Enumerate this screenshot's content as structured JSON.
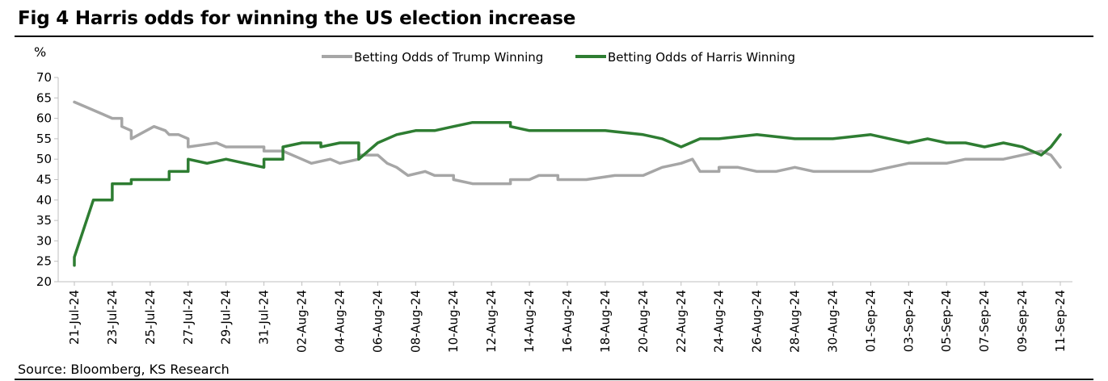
{
  "figure": {
    "title": "Fig 4 Harris odds for winning the US election increase",
    "source": "Source: Bloomberg, KS Research"
  },
  "chart_data": {
    "type": "line",
    "title": "Fig 4 Harris odds for winning the US election increase",
    "xlabel": "",
    "ylabel": "%",
    "ylim": [
      20,
      70
    ],
    "yticks": [
      20,
      25,
      30,
      35,
      40,
      45,
      50,
      55,
      60,
      65,
      70
    ],
    "grid": false,
    "legend_position": "top",
    "x_tick_labels": [
      "21-Jul-24",
      "23-Jul-24",
      "25-Jul-24",
      "27-Jul-24",
      "29-Jul-24",
      "31-Jul-24",
      "02-Aug-24",
      "04-Aug-24",
      "06-Aug-24",
      "08-Aug-24",
      "10-Aug-24",
      "12-Aug-24",
      "14-Aug-24",
      "16-Aug-24",
      "18-Aug-24",
      "20-Aug-24",
      "22-Aug-24",
      "24-Aug-24",
      "26-Aug-24",
      "28-Aug-24",
      "30-Aug-24",
      "01-Sep-24",
      "03-Sep-24",
      "05-Sep-24",
      "07-Sep-24",
      "09-Sep-24",
      "11-Sep-24"
    ],
    "series": [
      {
        "name": "Betting Odds of Trump Winning",
        "color": "#a6a6a6",
        "points": [
          {
            "x": "2024-07-21",
            "y": 64
          },
          {
            "x": "2024-07-21.5",
            "y": 63
          },
          {
            "x": "2024-07-22.5",
            "y": 61
          },
          {
            "x": "2024-07-23",
            "y": 60
          },
          {
            "x": "2024-07-23.5",
            "y": 60
          },
          {
            "x": "2024-07-23.5",
            "y": 58
          },
          {
            "x": "2024-07-24",
            "y": 57
          },
          {
            "x": "2024-07-24",
            "y": 55
          },
          {
            "x": "2024-07-25.2",
            "y": 58
          },
          {
            "x": "2024-07-25.8",
            "y": 57
          },
          {
            "x": "2024-07-26",
            "y": 56
          },
          {
            "x": "2024-07-26.5",
            "y": 56
          },
          {
            "x": "2024-07-27",
            "y": 55
          },
          {
            "x": "2024-07-27",
            "y": 53
          },
          {
            "x": "2024-07-28.5",
            "y": 54
          },
          {
            "x": "2024-07-29",
            "y": 53
          },
          {
            "x": "2024-07-30",
            "y": 53
          },
          {
            "x": "2024-07-31",
            "y": 53
          },
          {
            "x": "2024-07-31",
            "y": 52
          },
          {
            "x": "2024-08-01",
            "y": 52
          },
          {
            "x": "2024-08-02",
            "y": 50
          },
          {
            "x": "2024-08-02.5",
            "y": 49
          },
          {
            "x": "2024-08-03.5",
            "y": 50
          },
          {
            "x": "2024-08-04",
            "y": 49
          },
          {
            "x": "2024-08-05",
            "y": 50
          },
          {
            "x": "2024-08-05",
            "y": 51
          },
          {
            "x": "2024-08-06",
            "y": 51
          },
          {
            "x": "2024-08-06.5",
            "y": 49
          },
          {
            "x": "2024-08-07",
            "y": 48
          },
          {
            "x": "2024-08-07.6",
            "y": 46
          },
          {
            "x": "2024-08-08.5",
            "y": 47
          },
          {
            "x": "2024-08-09",
            "y": 46
          },
          {
            "x": "2024-08-10",
            "y": 46
          },
          {
            "x": "2024-08-10",
            "y": 45
          },
          {
            "x": "2024-08-11",
            "y": 44
          },
          {
            "x": "2024-08-12",
            "y": 44
          },
          {
            "x": "2024-08-13",
            "y": 44
          },
          {
            "x": "2024-08-13",
            "y": 45
          },
          {
            "x": "2024-08-14",
            "y": 45
          },
          {
            "x": "2024-08-14.5",
            "y": 46
          },
          {
            "x": "2024-08-15.5",
            "y": 46
          },
          {
            "x": "2024-08-15.5",
            "y": 45
          },
          {
            "x": "2024-08-17",
            "y": 45
          },
          {
            "x": "2024-08-18.5",
            "y": 46
          },
          {
            "x": "2024-08-20",
            "y": 46
          },
          {
            "x": "2024-08-21",
            "y": 48
          },
          {
            "x": "2024-08-22",
            "y": 49
          },
          {
            "x": "2024-08-22.6",
            "y": 50
          },
          {
            "x": "2024-08-23",
            "y": 47
          },
          {
            "x": "2024-08-24",
            "y": 47
          },
          {
            "x": "2024-08-24",
            "y": 48
          },
          {
            "x": "2024-08-25",
            "y": 48
          },
          {
            "x": "2024-08-26",
            "y": 47
          },
          {
            "x": "2024-08-27",
            "y": 47
          },
          {
            "x": "2024-08-28",
            "y": 48
          },
          {
            "x": "2024-08-29",
            "y": 47
          },
          {
            "x": "2024-08-30",
            "y": 47
          },
          {
            "x": "2024-08-31",
            "y": 47
          },
          {
            "x": "2024-09-01",
            "y": 47
          },
          {
            "x": "2024-09-02",
            "y": 48
          },
          {
            "x": "2024-09-03",
            "y": 49
          },
          {
            "x": "2024-09-04",
            "y": 49
          },
          {
            "x": "2024-09-05",
            "y": 49
          },
          {
            "x": "2024-09-06",
            "y": 50
          },
          {
            "x": "2024-09-07",
            "y": 50
          },
          {
            "x": "2024-09-08",
            "y": 50
          },
          {
            "x": "2024-09-09",
            "y": 51
          },
          {
            "x": "2024-09-10",
            "y": 52
          },
          {
            "x": "2024-09-10.5",
            "y": 51
          },
          {
            "x": "2024-09-11",
            "y": 48
          }
        ]
      },
      {
        "name": "Betting Odds of Harris Winning",
        "color": "#2e7d32",
        "points": [
          {
            "x": "2024-07-21",
            "y": 24
          },
          {
            "x": "2024-07-21",
            "y": 26
          },
          {
            "x": "2024-07-22",
            "y": 40
          },
          {
            "x": "2024-07-23",
            "y": 40
          },
          {
            "x": "2024-07-23",
            "y": 44
          },
          {
            "x": "2024-07-24",
            "y": 44
          },
          {
            "x": "2024-07-24",
            "y": 45
          },
          {
            "x": "2024-07-25",
            "y": 45
          },
          {
            "x": "2024-07-26",
            "y": 45
          },
          {
            "x": "2024-07-26",
            "y": 47
          },
          {
            "x": "2024-07-27",
            "y": 47
          },
          {
            "x": "2024-07-27",
            "y": 50
          },
          {
            "x": "2024-07-28",
            "y": 49
          },
          {
            "x": "2024-07-29",
            "y": 50
          },
          {
            "x": "2024-07-30",
            "y": 49
          },
          {
            "x": "2024-07-31",
            "y": 48
          },
          {
            "x": "2024-07-31",
            "y": 50
          },
          {
            "x": "2024-08-01",
            "y": 50
          },
          {
            "x": "2024-08-01",
            "y": 53
          },
          {
            "x": "2024-08-02",
            "y": 54
          },
          {
            "x": "2024-08-03",
            "y": 54
          },
          {
            "x": "2024-08-03",
            "y": 53
          },
          {
            "x": "2024-08-04",
            "y": 54
          },
          {
            "x": "2024-08-05",
            "y": 54
          },
          {
            "x": "2024-08-05",
            "y": 50
          },
          {
            "x": "2024-08-06",
            "y": 54
          },
          {
            "x": "2024-08-07",
            "y": 56
          },
          {
            "x": "2024-08-08",
            "y": 57
          },
          {
            "x": "2024-08-09",
            "y": 57
          },
          {
            "x": "2024-08-10",
            "y": 58
          },
          {
            "x": "2024-08-11",
            "y": 59
          },
          {
            "x": "2024-08-12",
            "y": 59
          },
          {
            "x": "2024-08-13",
            "y": 59
          },
          {
            "x": "2024-08-13",
            "y": 58
          },
          {
            "x": "2024-08-14",
            "y": 57
          },
          {
            "x": "2024-08-16",
            "y": 57
          },
          {
            "x": "2024-08-18",
            "y": 57
          },
          {
            "x": "2024-08-20",
            "y": 56
          },
          {
            "x": "2024-08-21",
            "y": 55
          },
          {
            "x": "2024-08-22",
            "y": 53
          },
          {
            "x": "2024-08-23",
            "y": 55
          },
          {
            "x": "2024-08-24",
            "y": 55
          },
          {
            "x": "2024-08-26",
            "y": 56
          },
          {
            "x": "2024-08-28",
            "y": 55
          },
          {
            "x": "2024-08-30",
            "y": 55
          },
          {
            "x": "2024-09-01",
            "y": 56
          },
          {
            "x": "2024-09-02",
            "y": 55
          },
          {
            "x": "2024-09-03",
            "y": 54
          },
          {
            "x": "2024-09-04",
            "y": 55
          },
          {
            "x": "2024-09-05",
            "y": 54
          },
          {
            "x": "2024-09-06",
            "y": 54
          },
          {
            "x": "2024-09-07",
            "y": 53
          },
          {
            "x": "2024-09-08",
            "y": 54
          },
          {
            "x": "2024-09-09",
            "y": 53
          },
          {
            "x": "2024-09-10",
            "y": 51
          },
          {
            "x": "2024-09-10.5",
            "y": 53
          },
          {
            "x": "2024-09-11",
            "y": 56
          }
        ]
      }
    ]
  }
}
